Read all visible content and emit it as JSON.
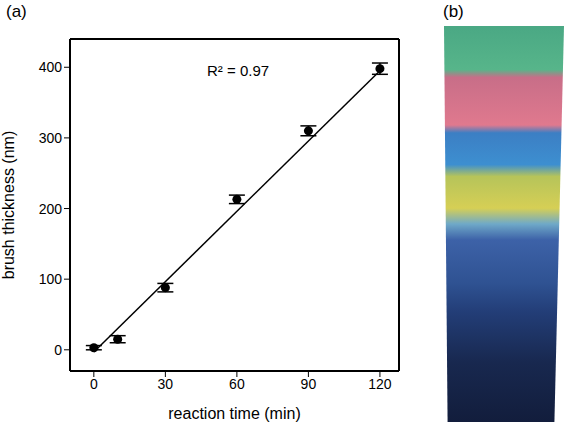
{
  "panel_labels": [
    "(a)",
    "(b)"
  ],
  "chart_data": {
    "type": "scatter",
    "x_label": "reaction time (min)",
    "y_label": "brush thickness (nm)",
    "annotations": [
      "R² = 0.97"
    ],
    "x": [
      0,
      10,
      30,
      60,
      90,
      120
    ],
    "values": [
      3,
      15,
      88,
      213,
      310,
      398
    ],
    "errors": [
      3,
      5,
      6,
      6,
      7,
      8
    ],
    "fit": {
      "x": [
        0,
        120
      ],
      "values": [
        -3,
        395
      ]
    },
    "xlim": [
      -10,
      128
    ],
    "ylim": [
      -30,
      440
    ],
    "xticks": [
      0,
      30,
      60,
      90,
      120
    ],
    "yticks": [
      0,
      100,
      200,
      300,
      400
    ],
    "color": "#000000",
    "marker": "circle",
    "grid": false
  }
}
